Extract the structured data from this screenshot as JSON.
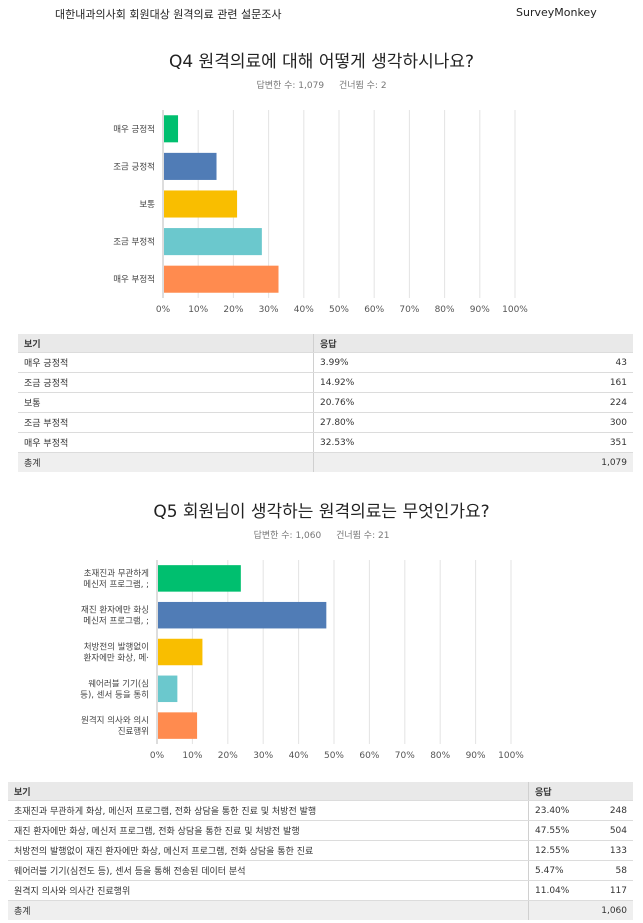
{
  "header": {
    "survey_title": "대한내과의사회 회원대상 원격의료 관련 설문조사",
    "brand": "SurveyMonkey"
  },
  "table_headers": {
    "choice": "보기",
    "response": "응답"
  },
  "total_label": "총계",
  "q4": {
    "title": "Q4 원격의료에 대해 어떻게 생각하시나요?",
    "answered": "답변한 수: 1,079",
    "skipped": "건너뜀 수: 2",
    "total": "1,079",
    "rows": [
      {
        "label": "매우 긍정적",
        "pct": "3.99%",
        "count": "43"
      },
      {
        "label": "조금 긍정적",
        "pct": "14.92%",
        "count": "161"
      },
      {
        "label": "보통",
        "pct": "20.76%",
        "count": "224"
      },
      {
        "label": "조금 부정적",
        "pct": "27.80%",
        "count": "300"
      },
      {
        "label": "매우 부정적",
        "pct": "32.53%",
        "count": "351"
      }
    ]
  },
  "q5": {
    "title": "Q5 회원님이 생각하는 원격의료는 무엇인가요?",
    "answered": "답변한 수: 1,060",
    "skipped": "건너뜀 수: 21",
    "total": "1,060",
    "rows": [
      {
        "label": "초재진과 무관하게 화상, 메신저 프로그램, 전화 상담을 통한 진료 및 처방전 발행",
        "pct": "23.40%",
        "count": "248"
      },
      {
        "label": "재진 환자에만 화상, 메신저 프로그램, 전화 상담을 통한 진료 및 처방전 발행",
        "pct": "47.55%",
        "count": "504"
      },
      {
        "label": "처방전의 발행없이 재진 환자에만 화상, 메신저 프로그램, 전화 상담을 통한 진료",
        "pct": "12.55%",
        "count": "133"
      },
      {
        "label": "웨어러블 기기(심전도 등), 센서 등을 통해 전송된 데이터 분석",
        "pct": "5.47%",
        "count": "58"
      },
      {
        "label": "원격지 의사와 의사간 진료행위",
        "pct": "11.04%",
        "count": "117"
      }
    ]
  },
  "chart_data": [
    {
      "type": "bar",
      "orientation": "horizontal",
      "title": "Q4 원격의료에 대해 어떻게 생각하시나요?",
      "categories": [
        "매우 긍정적",
        "조금 긍정적",
        "보통",
        "조금 부정적",
        "매우 부정적"
      ],
      "category_labels": [
        [
          "매우 긍정적"
        ],
        [
          "조금 긍정적"
        ],
        [
          "보통"
        ],
        [
          "조금 부정적"
        ],
        [
          "매우 부정적"
        ]
      ],
      "values": [
        3.99,
        14.92,
        20.76,
        27.8,
        32.53
      ],
      "colors": [
        "#00bf6f",
        "#507cb6",
        "#f9be00",
        "#6bc8cd",
        "#ff8b4f"
      ],
      "xlim": [
        0,
        100
      ],
      "xticks": [
        "0%",
        "10%",
        "20%",
        "30%",
        "40%",
        "50%",
        "60%",
        "70%",
        "80%",
        "90%",
        "100%"
      ],
      "grid": true
    },
    {
      "type": "bar",
      "orientation": "horizontal",
      "title": "Q5 회원님이 생각하는 원격의료는 무엇인가요?",
      "categories": [
        "초재진과 무관하게 화상, 메신저 프로그램, 전화 상담을 통한 진료 및 처방전 발행",
        "재진 환자에만 화상, 메신저 프로그램, 전화 상담을 통한 진료 및 처방전 발행",
        "처방전의 발행없이 재진 환자에만 화상, 메신저 프로그램, 전화 상담을 통한 진료",
        "웨어러블 기기(심전도 등), 센서 등을 통해 전송된 데이터 분석",
        "원격지 의사와 의사간 진료행위"
      ],
      "category_labels": [
        [
          "초재진과 무관하게",
          "메신저 프로그램, ;"
        ],
        [
          "재진 환자에만 화싱",
          "메신저 프로그램, ;"
        ],
        [
          "처방전의 발행없이",
          "환자에만 화상, 메·"
        ],
        [
          "웨어러블 기기(심",
          "등), 센서 등을 통히"
        ],
        [
          "원격지 의사와 의시",
          "진료행위"
        ]
      ],
      "values": [
        23.4,
        47.55,
        12.55,
        5.47,
        11.04
      ],
      "colors": [
        "#00bf6f",
        "#507cb6",
        "#f9be00",
        "#6bc8cd",
        "#ff8b4f"
      ],
      "xlim": [
        0,
        100
      ],
      "xticks": [
        "0%",
        "10%",
        "20%",
        "30%",
        "40%",
        "50%",
        "60%",
        "70%",
        "80%",
        "90%",
        "100%"
      ],
      "grid": true
    }
  ]
}
